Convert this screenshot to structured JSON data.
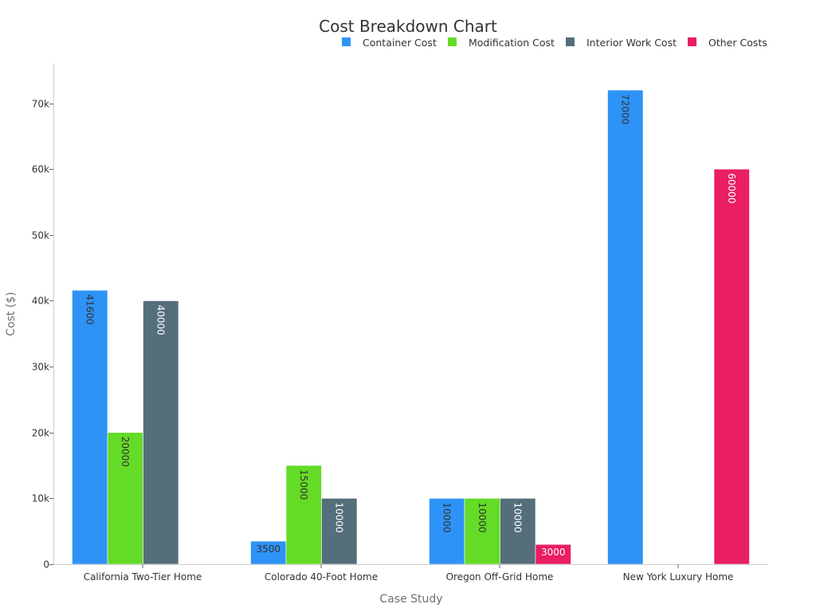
{
  "chart_data": {
    "type": "bar",
    "title": "Cost Breakdown Chart",
    "xlabel": "Case Study",
    "ylabel": "Cost ($)",
    "ylim": [
      0,
      76000
    ],
    "yticks": [
      0,
      10000,
      20000,
      30000,
      40000,
      50000,
      60000,
      70000
    ],
    "ytick_labels": [
      "0",
      "10k",
      "20k",
      "30k",
      "40k",
      "50k",
      "60k",
      "70k"
    ],
    "grid": false,
    "legend_position": "top-right",
    "categories": [
      "California Two-Tier Home",
      "Colorado 40-Foot Home",
      "Oregon Off-Grid Home",
      "New York Luxury Home"
    ],
    "series": [
      {
        "name": "Container Cost",
        "color": "#2e93f6",
        "label_color": "#333333",
        "values": [
          41600,
          3500,
          10000,
          72000
        ]
      },
      {
        "name": "Modification Cost",
        "color": "#64db26",
        "label_color": "#333333",
        "values": [
          20000,
          15000,
          10000,
          null
        ]
      },
      {
        "name": "Interior Work Cost",
        "color": "#546e7a",
        "label_color": "#ffffff",
        "values": [
          40000,
          10000,
          10000,
          null
        ]
      },
      {
        "name": "Other Costs",
        "color": "#e91e63",
        "label_color": "#ffffff",
        "values": [
          null,
          null,
          3000,
          60000
        ]
      }
    ]
  }
}
